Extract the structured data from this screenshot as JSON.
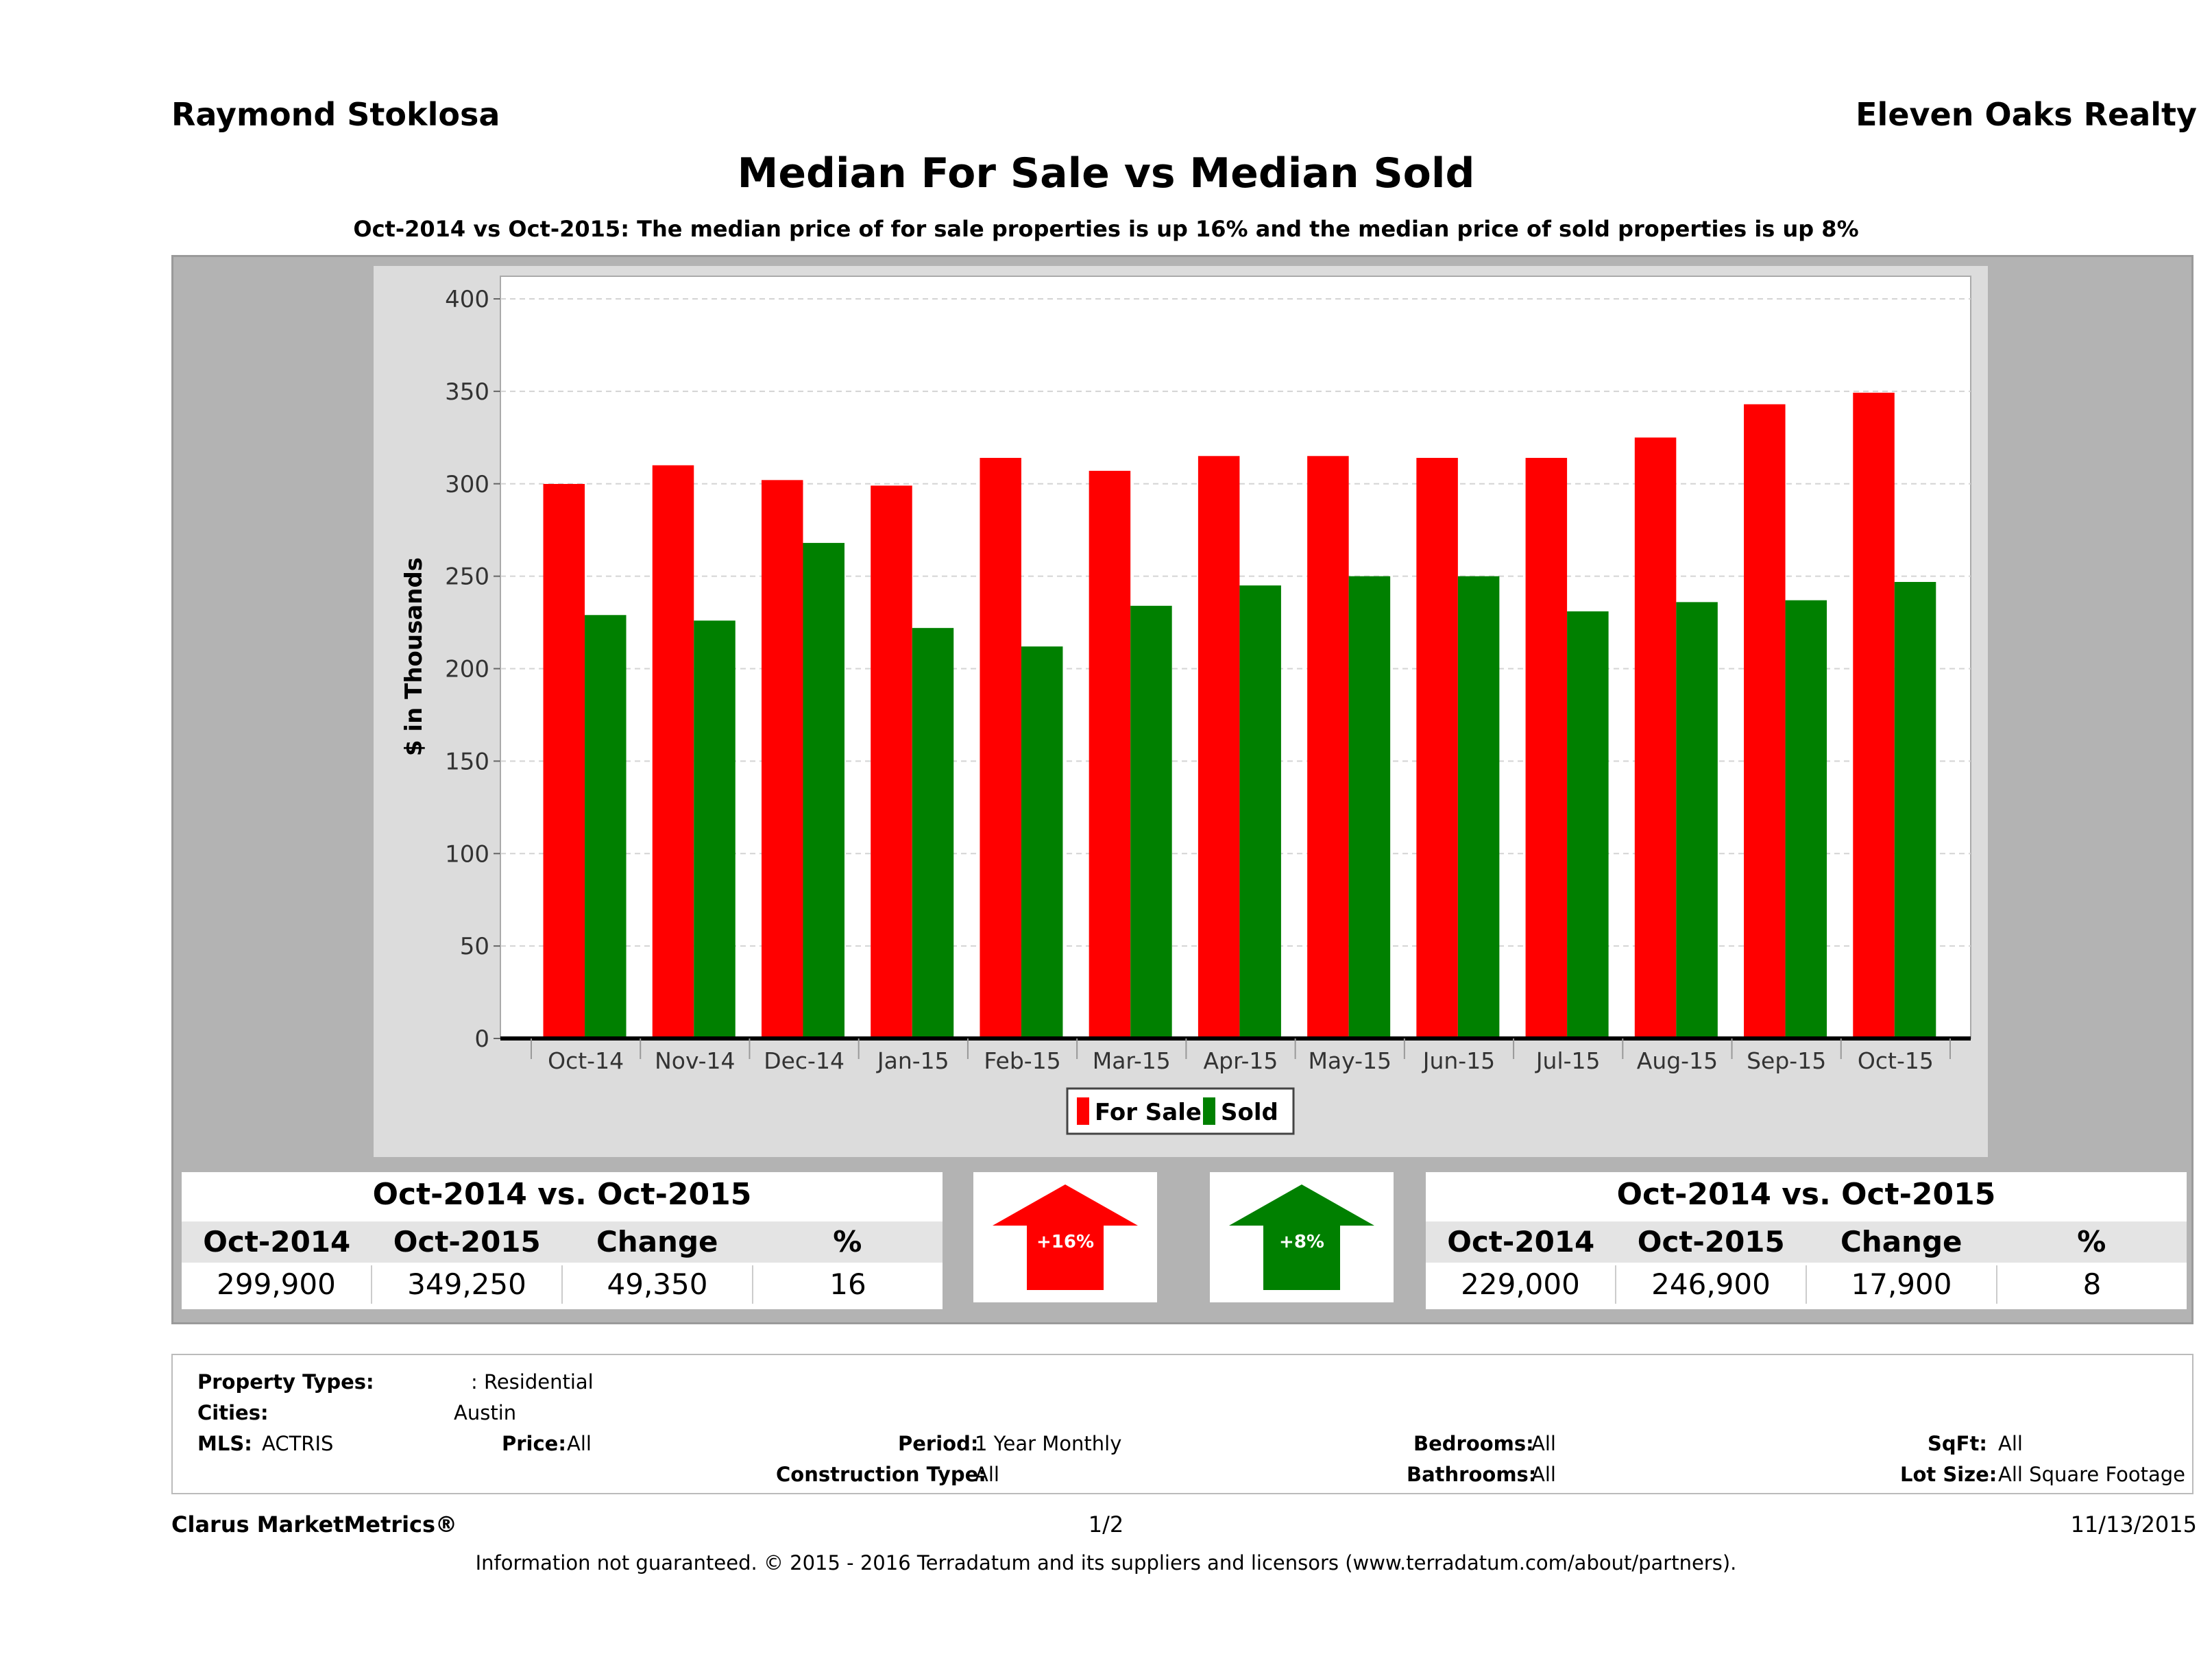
{
  "header": {
    "agent": "Raymond Stoklosa",
    "company": "Eleven Oaks Realty"
  },
  "title": "Median For Sale vs Median Sold",
  "subtitle": "Oct-2014 vs Oct-2015: The median price of for sale properties is up 16% and the median price of sold properties is up 8%",
  "chart_data": {
    "type": "bar",
    "title": "Median For Sale vs Median Sold",
    "ylabel": "$ in Thousands",
    "xlabel": "",
    "ylim": [
      0,
      400
    ],
    "yticks": [
      0,
      50,
      100,
      150,
      200,
      250,
      300,
      350,
      400
    ],
    "grid": true,
    "legend_position": "bottom",
    "categories": [
      "Oct-14",
      "Nov-14",
      "Dec-14",
      "Jan-15",
      "Feb-15",
      "Mar-15",
      "Apr-15",
      "May-15",
      "Jun-15",
      "Jul-15",
      "Aug-15",
      "Sep-15",
      "Oct-15"
    ],
    "series": [
      {
        "name": "For Sale",
        "color": "#ff0000",
        "values": [
          299.9,
          310,
          302,
          299,
          314,
          307,
          315,
          315,
          314,
          314,
          325,
          343,
          349.25
        ]
      },
      {
        "name": "Sold",
        "color": "#008000",
        "values": [
          229,
          226,
          268,
          222,
          212,
          234,
          245,
          250,
          250,
          231,
          236,
          237,
          246.9
        ]
      }
    ]
  },
  "stats_left": {
    "heading": "Oct-2014 vs. Oct-2015",
    "columns": [
      "Oct-2014",
      "Oct-2015",
      "Change",
      "%"
    ],
    "values": [
      "299,900",
      "349,250",
      "49,350",
      "16"
    ]
  },
  "stats_right": {
    "heading": "Oct-2014 vs. Oct-2015",
    "columns": [
      "Oct-2014",
      "Oct-2015",
      "Change",
      "%"
    ],
    "values": [
      "229,000",
      "246,900",
      "17,900",
      "8"
    ]
  },
  "arrows": {
    "for_sale": {
      "label": "+16%",
      "color": "#ff0000",
      "icon": "arrow-up-icon"
    },
    "sold": {
      "label": "+8%",
      "color": "#008000",
      "icon": "arrow-up-icon"
    }
  },
  "criteria": {
    "property_types_label": "Property Types:",
    "property_types_value": ": Residential",
    "cities_label": "Cities:",
    "cities_value": "Austin",
    "mls_label": "MLS:",
    "mls_value": "ACTRIS",
    "price_label": "Price:",
    "price_value": "All",
    "period_label": "Period:",
    "period_value": "1 Year Monthly",
    "bedrooms_label": "Bedrooms:",
    "bedrooms_value": "All",
    "sqft_label": "SqFt:",
    "sqft_value": "All",
    "construction_label": "Construction Type:",
    "construction_value": "All",
    "bathrooms_label": "Bathrooms:",
    "bathrooms_value": "All",
    "lotsize_label": "Lot Size:",
    "lotsize_value": "All Square Footage"
  },
  "footer": {
    "brand": "Clarus MarketMetrics®",
    "page": "1/2",
    "date": "11/13/2015",
    "disclaimer": "Information not guaranteed. © 2015 - 2016 Terradatum and its suppliers and licensors (www.terradatum.com/about/partners)."
  }
}
